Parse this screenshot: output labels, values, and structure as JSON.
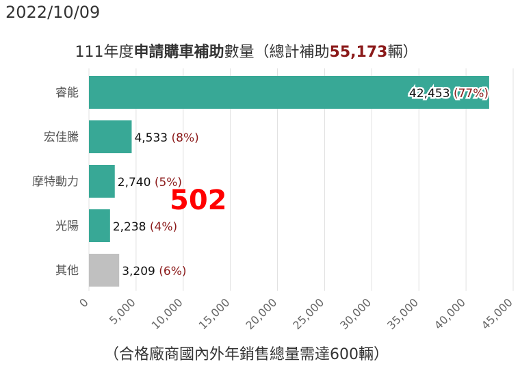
{
  "date": "2022/10/09",
  "title": {
    "prefix": "111年度",
    "bold": "申請購車補助",
    "middle": "數量（總計補助",
    "total": "55,173",
    "suffix": "輛）"
  },
  "annotation": "502",
  "colors": {
    "bar": "#38a896",
    "other": "#c0c0c0",
    "percent": "#8b1a1a"
  },
  "chart_data": {
    "type": "bar",
    "orientation": "horizontal",
    "categories": [
      "睿能",
      "宏佳騰",
      "摩特動力",
      "光陽",
      "其他"
    ],
    "values": [
      42453,
      4533,
      2740,
      2238,
      3209
    ],
    "value_labels": [
      "42,453",
      "4,533",
      "2,740",
      "2,238",
      "3,209"
    ],
    "percent_labels": [
      "(77%)",
      "(8%)",
      "(5%)",
      "(4%)",
      "(6%)"
    ],
    "xlim": [
      0,
      45000
    ],
    "xticks": [
      "0",
      "5,000",
      "10,000",
      "15,000",
      "20,000",
      "25,000",
      "30,000",
      "35,000",
      "40,000",
      "45,000"
    ],
    "xlabel": "（合格廠商國內外年銷售總量需達600輛）",
    "grid": true
  }
}
